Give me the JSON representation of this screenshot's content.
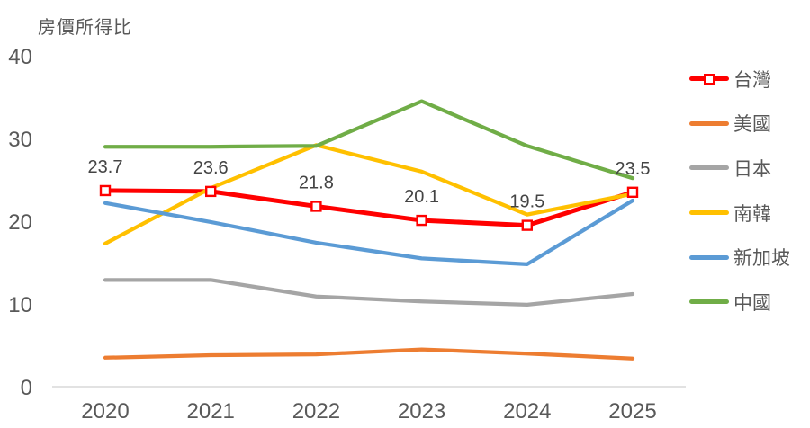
{
  "title": "房價所得比",
  "chart_data": {
    "type": "line",
    "title": "房價所得比",
    "categories": [
      "2020",
      "2021",
      "2022",
      "2023",
      "2024",
      "2025"
    ],
    "series": [
      {
        "name": "台灣",
        "color": "#FF0000",
        "marker": "open-square",
        "values": [
          23.7,
          23.6,
          21.8,
          20.1,
          19.5,
          23.5
        ],
        "data_labels": [
          "23.7",
          "23.6",
          "21.8",
          "20.1",
          "19.5",
          "23.5"
        ]
      },
      {
        "name": "美國",
        "color": "#ED7D31",
        "marker": "none",
        "values": [
          3.5,
          3.8,
          3.9,
          4.5,
          4.0,
          3.4
        ]
      },
      {
        "name": "日本",
        "color": "#A5A5A5",
        "marker": "none",
        "values": [
          12.9,
          12.9,
          10.9,
          10.3,
          9.9,
          11.2
        ]
      },
      {
        "name": "南韓",
        "color": "#FFC000",
        "marker": "none",
        "values": [
          17.3,
          24.0,
          29.2,
          26.0,
          20.8,
          23.3
        ]
      },
      {
        "name": "新加坡",
        "color": "#5B9BD5",
        "marker": "none",
        "values": [
          22.2,
          19.9,
          17.4,
          15.5,
          14.8,
          22.5
        ]
      },
      {
        "name": "中國",
        "color": "#70AD47",
        "marker": "none",
        "values": [
          29.0,
          29.0,
          29.1,
          34.5,
          29.1,
          25.2
        ]
      }
    ],
    "xlabel": "",
    "ylabel": "房價所得比",
    "ylim": [
      0,
      40
    ],
    "yticks": [
      0,
      10,
      20,
      30,
      40
    ],
    "grid": false,
    "legend_position": "right",
    "colors": {
      "text": "#595959",
      "data_label_text": "#444444",
      "axis_line": "#D9D9D9",
      "background": "#FFFFFF"
    }
  }
}
